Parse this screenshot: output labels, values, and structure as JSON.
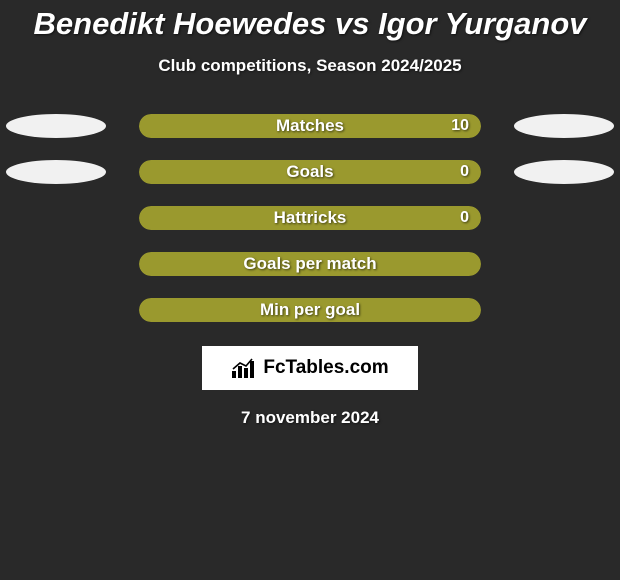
{
  "title": {
    "text": "Benedikt Hoewedes vs Igor Yurganov",
    "fontsize": 31,
    "color": "#ffffff"
  },
  "subtitle": {
    "text": "Club competitions, Season 2024/2025",
    "fontsize": 17,
    "color": "#ffffff"
  },
  "background_color": "#292929",
  "bar_track_color": "#9a992e",
  "ellipse_color": "#f1f1f1",
  "bar_label_fontsize": 17,
  "bar_value_fontsize": 16,
  "rows": [
    {
      "label": "Matches",
      "value": "10",
      "fill_pct": 100,
      "show_value": true,
      "left_ellipse": true,
      "right_ellipse": true
    },
    {
      "label": "Goals",
      "value": "0",
      "fill_pct": 100,
      "show_value": true,
      "left_ellipse": true,
      "right_ellipse": true
    },
    {
      "label": "Hattricks",
      "value": "0",
      "fill_pct": 100,
      "show_value": true,
      "left_ellipse": false,
      "right_ellipse": false
    },
    {
      "label": "Goals per match",
      "value": "",
      "fill_pct": 100,
      "show_value": false,
      "left_ellipse": false,
      "right_ellipse": false
    },
    {
      "label": "Min per goal",
      "value": "",
      "fill_pct": 100,
      "show_value": false,
      "left_ellipse": false,
      "right_ellipse": false
    }
  ],
  "logo": {
    "text": "FcTables.com",
    "background": "#ffffff",
    "text_color": "#000000",
    "fontsize": 19
  },
  "date": {
    "text": "7 november 2024",
    "fontsize": 17,
    "color": "#ffffff"
  }
}
